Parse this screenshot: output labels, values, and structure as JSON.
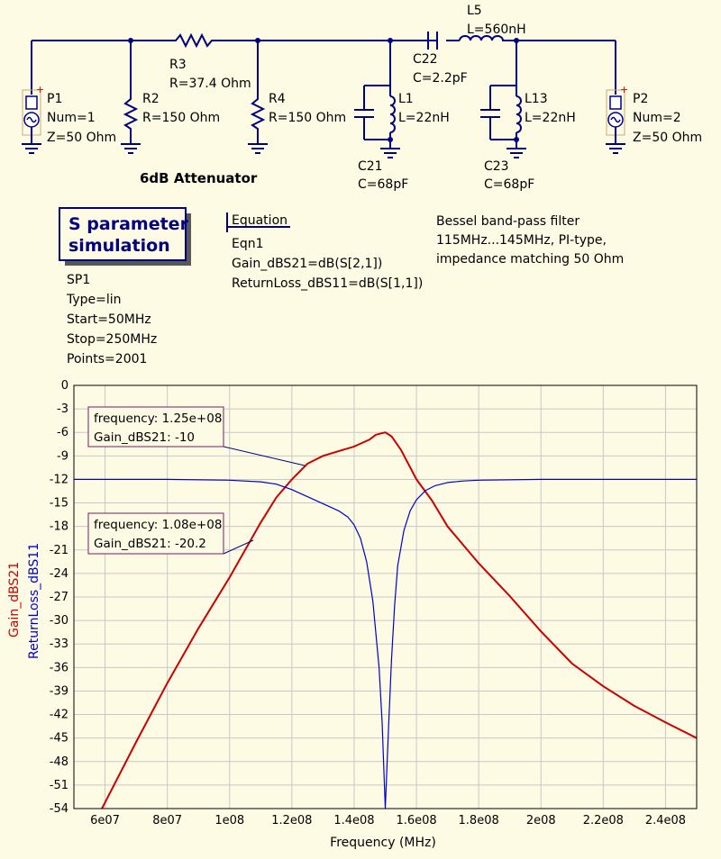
{
  "schematic": {
    "P1": {
      "name": "P1",
      "num": "Num=1",
      "z": "Z=50 Ohm"
    },
    "P2": {
      "name": "P2",
      "num": "Num=2",
      "z": "Z=50 Ohm"
    },
    "R2": {
      "name": "R2",
      "value": "R=150 Ohm"
    },
    "R3": {
      "name": "R3",
      "value": "R=37.4 Ohm"
    },
    "R4": {
      "name": "R4",
      "value": "R=150 Ohm"
    },
    "L1": {
      "name": "L1",
      "value": "L=22nH"
    },
    "C21": {
      "name": "C21",
      "value": "C=68pF"
    },
    "C22": {
      "name": "C22",
      "value": "C=2.2pF"
    },
    "L5": {
      "name": "L5",
      "value": "L=560nH"
    },
    "L13": {
      "name": "L13",
      "value": "L=22nH"
    },
    "C23": {
      "name": "C23",
      "value": "C=68pF"
    },
    "attenuator_label": "6dB Attenuator"
  },
  "sim": {
    "title_line1": "S parameter",
    "title_line2": "simulation",
    "name": "SP1",
    "type": "Type=lin",
    "start": "Start=50MHz",
    "stop": "Stop=250MHz",
    "points": "Points=2001"
  },
  "equation": {
    "title": "Equation",
    "name": "Eqn1",
    "eq1": "Gain_dBS21=dB(S[2,1])",
    "eq2": "ReturnLoss_dBS11=dB(S[1,1])"
  },
  "description": {
    "line1": "Bessel band-pass filter",
    "line2": "115MHz...145MHz, PI-type,",
    "line3": "impedance matching 50 Ohm"
  },
  "markers": [
    {
      "line1": "frequency: 1.25e+08",
      "line2": "Gain_dBS21: -10"
    },
    {
      "line1": "frequency: 1.08e+08",
      "line2": "Gain_dBS21: -20.2"
    }
  ],
  "chart_data": {
    "type": "line",
    "xlabel": "Frequency (MHz)",
    "ylabel_left": "Gain_dBS21",
    "ylabel_right": "ReturnLoss_dBS11",
    "xlim": [
      50000000,
      250000000
    ],
    "ylim": [
      -54,
      0
    ],
    "x_ticks": [
      "6e07",
      "8e07",
      "1e08",
      "1.2e08",
      "1.4e08",
      "1.6e08",
      "1.8e08",
      "2e08",
      "2.2e08",
      "2.4e08"
    ],
    "x_tick_values": [
      60000000,
      80000000,
      100000000,
      120000000,
      140000000,
      160000000,
      180000000,
      200000000,
      220000000,
      240000000
    ],
    "y_ticks": [
      "0",
      "-3",
      "-6",
      "-9",
      "-12",
      "-15",
      "-18",
      "-21",
      "-24",
      "-27",
      "-30",
      "-33",
      "-36",
      "-39",
      "-42",
      "-45",
      "-48",
      "-51",
      "-54"
    ],
    "y_tick_values": [
      0,
      -3,
      -6,
      -9,
      -12,
      -15,
      -18,
      -21,
      -24,
      -27,
      -30,
      -33,
      -36,
      -39,
      -42,
      -45,
      -48,
      -51,
      -54
    ],
    "grid": true,
    "series": [
      {
        "name": "Gain_dBS21",
        "color": "#cc0000",
        "x": [
          59000000,
          70000000,
          80000000,
          90000000,
          100000000,
          105000000,
          110000000,
          115000000,
          120000000,
          125000000,
          130000000,
          135000000,
          140000000,
          145000000,
          147000000,
          150000000,
          152000000,
          155000000,
          160000000,
          165000000,
          170000000,
          180000000,
          190000000,
          200000000,
          210000000,
          220000000,
          230000000,
          240000000,
          250000000
        ],
        "y": [
          -54,
          -45.5,
          -38,
          -31,
          -24.5,
          -21,
          -17.5,
          -14.3,
          -12,
          -10,
          -9,
          -8.4,
          -7.8,
          -6.9,
          -6.3,
          -6,
          -6.5,
          -8.2,
          -12,
          -14.7,
          -18,
          -22.7,
          -26.9,
          -31.4,
          -35.5,
          -38.4,
          -40.9,
          -43,
          -45
        ]
      },
      {
        "name": "ReturnLoss_dBS11",
        "color": "#0000cc",
        "x": [
          50000000,
          80000000,
          100000000,
          110000000,
          115000000,
          120000000,
          125000000,
          130000000,
          135000000,
          138000000,
          140000000,
          142000000,
          144000000,
          146000000,
          148000000,
          149000000,
          150000000,
          151000000,
          152000000,
          153000000,
          154000000,
          156000000,
          158000000,
          160000000,
          163000000,
          166000000,
          170000000,
          175000000,
          180000000,
          200000000,
          250000000
        ],
        "y": [
          -12,
          -12,
          -12.1,
          -12.3,
          -12.6,
          -13.3,
          -14.2,
          -15.1,
          -16,
          -16.8,
          -17.8,
          -19.5,
          -22.5,
          -27.5,
          -36,
          -43,
          -54,
          -44,
          -35,
          -28,
          -23,
          -18.5,
          -16,
          -14.6,
          -13.4,
          -12.8,
          -12.4,
          -12.2,
          -12.1,
          -12,
          -12
        ]
      }
    ]
  }
}
